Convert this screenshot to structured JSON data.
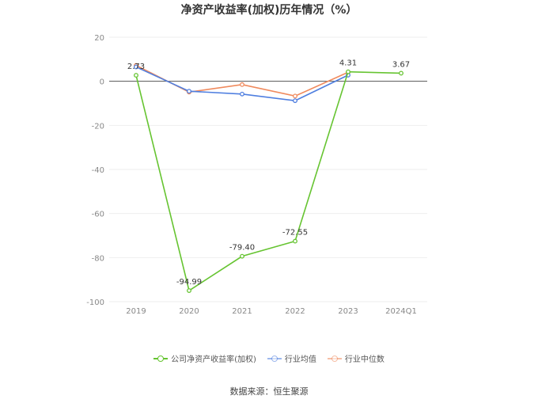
{
  "title": "净资产收益率(加权)历年情况（%）",
  "source": "数据来源：恒生聚源",
  "chart_data": {
    "type": "line",
    "categories": [
      "2019",
      "2020",
      "2021",
      "2022",
      "2023",
      "2024Q1"
    ],
    "ylim": [
      -100,
      20
    ],
    "yticks": [
      20,
      0,
      -20,
      -40,
      -60,
      -80,
      -100
    ],
    "grid": true,
    "legend_position": "bottom",
    "series": [
      {
        "name": "公司净资产收益率(加权)",
        "color": "#66c431",
        "values": [
          2.73,
          -94.99,
          -79.4,
          -72.55,
          4.31,
          3.67
        ],
        "labels": [
          "2.73",
          "-94.99",
          "-79.40",
          "-72.55",
          "4.31",
          "3.67"
        ]
      },
      {
        "name": "行业均值",
        "color": "#4f7fe0",
        "values": [
          6.5,
          -4.5,
          -5.8,
          -8.8,
          2.8,
          null
        ],
        "labels": []
      },
      {
        "name": "行业中位数",
        "color": "#f08a5d",
        "values": [
          7.2,
          -4.9,
          -1.5,
          -6.7,
          4.1,
          null
        ],
        "labels": []
      }
    ]
  }
}
